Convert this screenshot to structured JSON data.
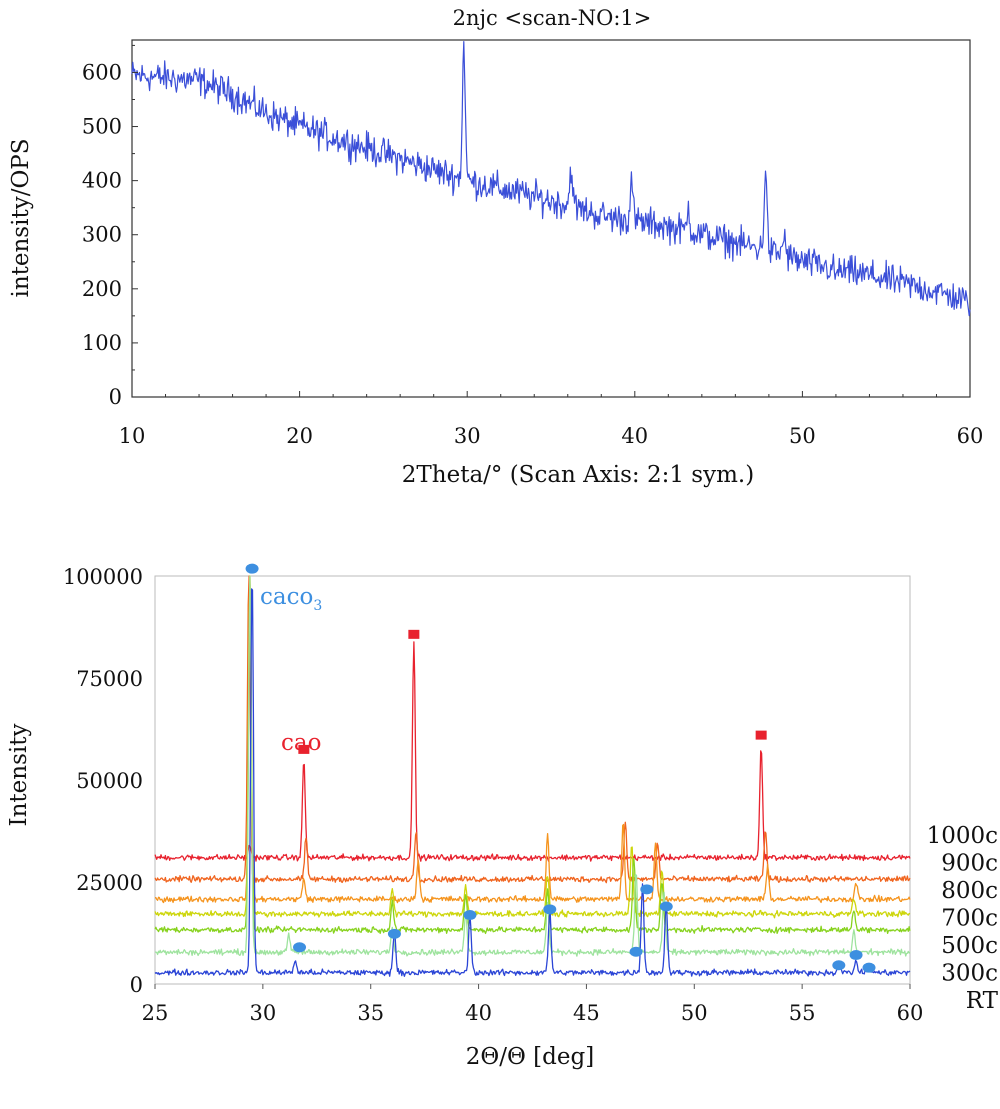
{
  "chart_data": [
    {
      "type": "line",
      "title": "2njc <scan-NO:1>",
      "xlabel": "2Theta/° (Scan Axis: 2:1 sym.)",
      "ylabel": "intensity/OPS",
      "xlim": [
        10,
        60
      ],
      "ylim": [
        0,
        660
      ],
      "x_ticks": [
        "10",
        "20",
        "30",
        "40",
        "50",
        "60"
      ],
      "y_ticks": [
        "0",
        "100",
        "200",
        "300",
        "400",
        "500",
        "600"
      ],
      "grid": false,
      "legend": "none",
      "line_color": "#3b4fd8",
      "series": [
        {
          "baseline": [
            [
              10,
              595
            ],
            [
              12,
              590
            ],
            [
              14,
              585
            ],
            [
              16,
              560
            ],
            [
              18,
              525
            ],
            [
              20,
              500
            ],
            [
              22,
              480
            ],
            [
              24,
              460
            ],
            [
              26,
              440
            ],
            [
              28,
              420
            ],
            [
              30,
              400
            ],
            [
              32,
              385
            ],
            [
              34,
              370
            ],
            [
              36,
              355
            ],
            [
              38,
              335
            ],
            [
              40,
              325
            ],
            [
              42,
              315
            ],
            [
              44,
              300
            ],
            [
              46,
              285
            ],
            [
              48,
              270
            ],
            [
              50,
              250
            ],
            [
              52,
              235
            ],
            [
              54,
              225
            ],
            [
              56,
              210
            ],
            [
              58,
              195
            ],
            [
              60,
              175
            ]
          ],
          "peaks": [
            [
              29.8,
              650
            ],
            [
              36.2,
              425
            ],
            [
              39.8,
              400
            ],
            [
              43.2,
              350
            ],
            [
              47.8,
              420
            ],
            [
              48.9,
              300
            ],
            [
              52.0,
              225
            ]
          ]
        }
      ]
    },
    {
      "type": "line",
      "title": "",
      "xlabel": "2Θ/Θ [deg]",
      "ylabel": "Intensity",
      "xlim": [
        25,
        60
      ],
      "ylim": [
        0,
        100000
      ],
      "x_ticks": [
        "25",
        "30",
        "35",
        "40",
        "45",
        "50",
        "55",
        "60"
      ],
      "y_ticks": [
        "0",
        "25000",
        "50000",
        "75000",
        "100000"
      ],
      "grid": false,
      "legend": "right",
      "series": [
        {
          "name": "1000c",
          "offset": 31000,
          "color": "#e8222e",
          "peaks": [
            [
              29.4,
              3000
            ],
            [
              31.9,
              24000
            ],
            [
              37.0,
              53000
            ],
            [
              53.1,
              27000
            ]
          ]
        },
        {
          "name": "900c",
          "offset": 25700,
          "color": "#f0641e",
          "peaks": [
            [
              29.35,
              75000
            ],
            [
              32.0,
              10000
            ],
            [
              37.1,
              12000
            ],
            [
              46.8,
              14000
            ],
            [
              48.3,
              9000
            ],
            [
              53.3,
              12000
            ]
          ]
        },
        {
          "name": "800c",
          "offset": 20800,
          "color": "#f5941e",
          "peaks": [
            [
              29.4,
              80000
            ],
            [
              31.9,
              5000
            ],
            [
              37.2,
              10000
            ],
            [
              43.2,
              16000
            ],
            [
              46.7,
              19000
            ],
            [
              48.2,
              14000
            ],
            [
              53.4,
              8000
            ],
            [
              57.5,
              4000
            ]
          ]
        },
        {
          "name": "700c",
          "offset": 17200,
          "color": "#cdd60c",
          "peaks": [
            [
              29.4,
              84000
            ],
            [
              36.0,
              6000
            ],
            [
              39.4,
              7000
            ],
            [
              43.2,
              10000
            ],
            [
              47.1,
              17000
            ],
            [
              48.5,
              11000
            ],
            [
              57.4,
              4000
            ]
          ]
        },
        {
          "name": "500c",
          "offset": 13300,
          "color": "#87d21e",
          "peaks": [
            [
              29.4,
              85000
            ],
            [
              36.0,
              7000
            ],
            [
              39.4,
              9000
            ],
            [
              43.2,
              10000
            ],
            [
              47.2,
              18000
            ],
            [
              48.5,
              12000
            ],
            [
              57.4,
              5000
            ]
          ]
        },
        {
          "name": "300c",
          "offset": 7800,
          "color": "#9ee39e",
          "peaks": [
            [
              29.4,
              92000
            ],
            [
              31.2,
              4000
            ],
            [
              36.0,
              6000
            ],
            [
              39.4,
              10000
            ],
            [
              43.2,
              12000
            ],
            [
              47.3,
              20000
            ],
            [
              48.6,
              15000
            ],
            [
              57.4,
              5000
            ]
          ]
        },
        {
          "name": "RT",
          "offset": 2800,
          "color": "#2b45d6",
          "peaks": [
            [
              29.5,
              99000
            ],
            [
              31.5,
              3000
            ],
            [
              36.1,
              10000
            ],
            [
              39.6,
              14000
            ],
            [
              43.3,
              15000
            ],
            [
              47.6,
              22000
            ],
            [
              48.7,
              17000
            ],
            [
              56.7,
              2000
            ],
            [
              57.5,
              3000
            ],
            [
              58.1,
              1500
            ]
          ]
        }
      ],
      "markers": [
        {
          "label": "caco3",
          "label_sub": "3",
          "shape": "circle",
          "color": "#3d8fe0",
          "points": [
            [
              29.5,
              101800
            ],
            [
              31.7,
              9000
            ],
            [
              36.1,
              12300
            ],
            [
              39.6,
              16900
            ],
            [
              43.3,
              18300
            ],
            [
              47.3,
              7900
            ],
            [
              47.8,
              23200
            ],
            [
              48.7,
              19000
            ],
            [
              56.7,
              4600
            ],
            [
              57.5,
              7100
            ],
            [
              58.1,
              4000
            ]
          ]
        },
        {
          "label": "cao",
          "shape": "square",
          "color": "#e8222e",
          "points": [
            [
              31.9,
              57500
            ],
            [
              37.0,
              85700
            ],
            [
              53.1,
              61000
            ]
          ]
        }
      ]
    }
  ]
}
